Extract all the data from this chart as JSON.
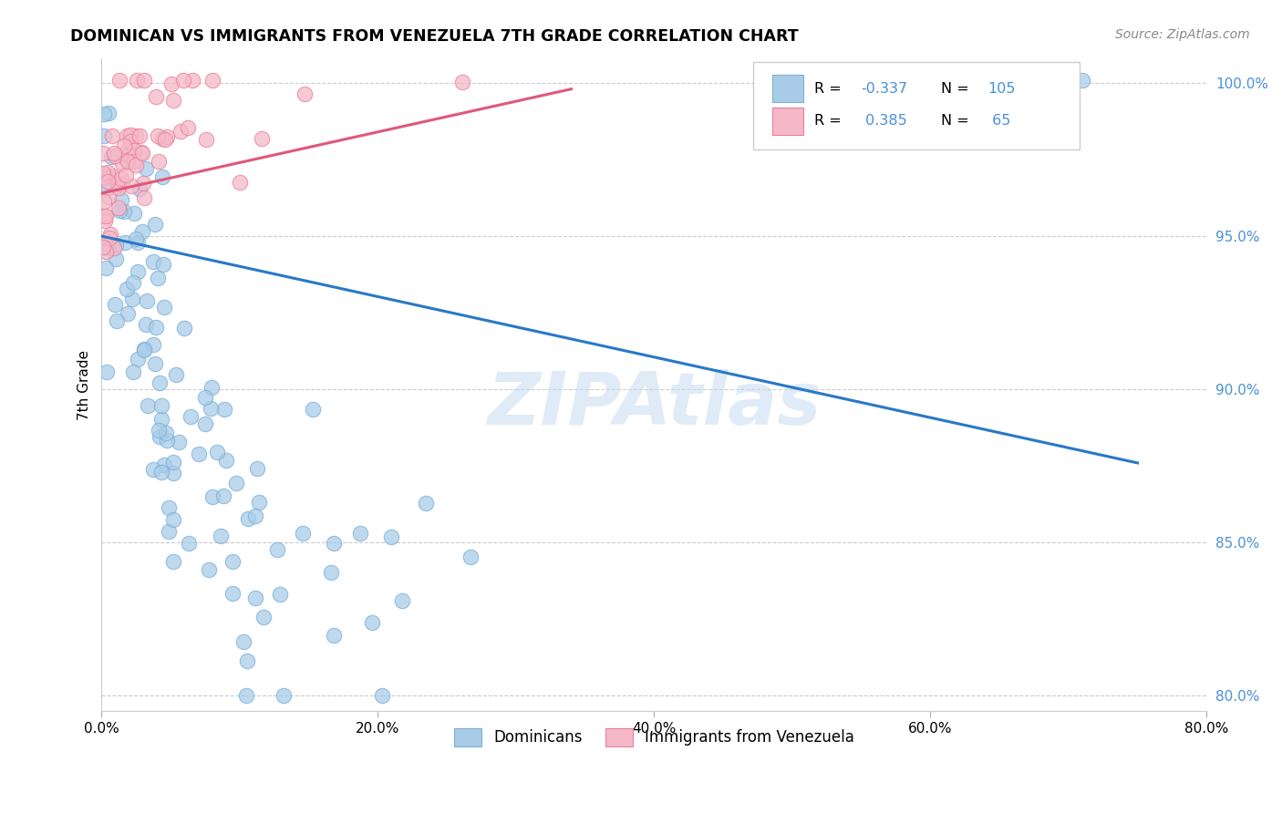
{
  "title": "DOMINICAN VS IMMIGRANTS FROM VENEZUELA 7TH GRADE CORRELATION CHART",
  "source": "Source: ZipAtlas.com",
  "xlim": [
    0.0,
    0.8
  ],
  "ylim": [
    0.795,
    1.008
  ],
  "ylabel": "7th Grade",
  "legend_labels": [
    "Dominicans",
    "Immigrants from Venezuela"
  ],
  "dominicans_color": "#a8cce8",
  "dominicans_edge_color": "#7ab0d8",
  "venezuela_color": "#f5b8c8",
  "venezuela_edge_color": "#e8809a",
  "dominicans_line_color": "#2878c8",
  "venezuela_line_color": "#e05878",
  "R_dominicans": "-0.337",
  "N_dominicans": 105,
  "R_venezuela": "0.385",
  "N_venezuela": 65,
  "watermark": "ZIPAtlas",
  "dom_line_x0": 0.0,
  "dom_line_y0": 0.95,
  "dom_line_x1": 0.75,
  "dom_line_y1": 0.876,
  "ven_line_x0": 0.0,
  "ven_line_y0": 0.964,
  "ven_line_x1": 0.34,
  "ven_line_y1": 0.998,
  "ytick_color": "#4a90d9"
}
